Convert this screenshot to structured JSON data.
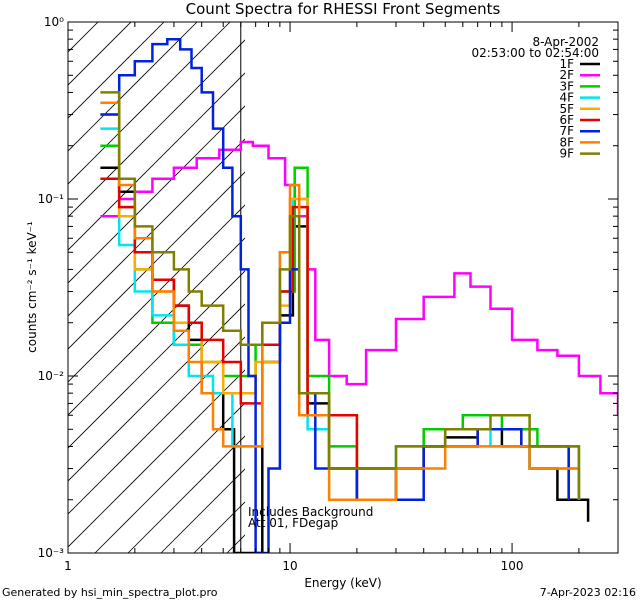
{
  "chart_data": {
    "type": "line",
    "title": "Count Spectra for RHESSI Front Segments",
    "xlabel": "Energy (keV)",
    "ylabel": "counts cm⁻² s⁻¹ keV⁻¹",
    "xscale": "log",
    "yscale": "log",
    "xlim": [
      1,
      300
    ],
    "ylim": [
      0.001,
      1
    ],
    "x_tick_labels": [
      "1",
      "10",
      "100"
    ],
    "y_tick_labels": [
      "10⁻³",
      "10⁻²",
      "10⁻¹",
      "10⁰"
    ],
    "date": "8-Apr-2002",
    "time_range": "02:53:00 to 02:54:00",
    "annotation_lines": [
      "Includes Background",
      "Att 01, FDegap"
    ],
    "footer_left": "Generated by hsi_min_spectra_plot.pro",
    "footer_right": "7-Apr-2023 02:16",
    "hatched_region_xmax_kev": 6,
    "series": [
      {
        "name": "1F",
        "color": "#000000",
        "points": [
          [
            1.4,
            0.15
          ],
          [
            1.7,
            0.11
          ],
          [
            2.0,
            0.05
          ],
          [
            2.4,
            0.035
          ],
          [
            3.0,
            0.025
          ],
          [
            3.5,
            0.016
          ],
          [
            4.0,
            0.008
          ],
          [
            5.0,
            0.005
          ],
          [
            5.6,
            0.001
          ],
          [
            7.5,
            0.012
          ],
          [
            9.0,
            0.022
          ],
          [
            10.3,
            0.07
          ],
          [
            12.0,
            0.007
          ],
          [
            15.0,
            0.003
          ],
          [
            20.0,
            0.002
          ],
          [
            30.0,
            0.003
          ],
          [
            40.0,
            0.004
          ],
          [
            50.0,
            0.0045
          ],
          [
            70.0,
            0.005
          ],
          [
            90.0,
            0.004
          ],
          [
            120.0,
            0.003
          ],
          [
            160.0,
            0.002
          ],
          [
            220.0,
            0.0015
          ]
        ]
      },
      {
        "name": "2F",
        "color": "#ff00ff",
        "points": [
          [
            1.4,
            0.08
          ],
          [
            1.7,
            0.1
          ],
          [
            2.0,
            0.11
          ],
          [
            2.4,
            0.13
          ],
          [
            3.0,
            0.15
          ],
          [
            3.8,
            0.17
          ],
          [
            4.8,
            0.19
          ],
          [
            6.0,
            0.21
          ],
          [
            6.8,
            0.2
          ],
          [
            8.0,
            0.17
          ],
          [
            9.5,
            0.12
          ],
          [
            10.5,
            0.08
          ],
          [
            12.0,
            0.04
          ],
          [
            13.0,
            0.016
          ],
          [
            15.0,
            0.01
          ],
          [
            18.0,
            0.009
          ],
          [
            22.0,
            0.014
          ],
          [
            30.0,
            0.021
          ],
          [
            40.0,
            0.028
          ],
          [
            55.0,
            0.038
          ],
          [
            65.0,
            0.032
          ],
          [
            80.0,
            0.024
          ],
          [
            100.0,
            0.016
          ],
          [
            130.0,
            0.014
          ],
          [
            160.0,
            0.013
          ],
          [
            200.0,
            0.01
          ],
          [
            250.0,
            0.008
          ],
          [
            300.0,
            0.006
          ]
        ]
      },
      {
        "name": "3F",
        "color": "#00cc00",
        "points": [
          [
            1.4,
            0.2
          ],
          [
            1.7,
            0.09
          ],
          [
            2.0,
            0.04
          ],
          [
            2.4,
            0.02
          ],
          [
            3.0,
            0.015
          ],
          [
            4.0,
            0.012
          ],
          [
            5.0,
            0.01
          ],
          [
            7.0,
            0.015
          ],
          [
            9.0,
            0.03
          ],
          [
            10.5,
            0.15
          ],
          [
            12.0,
            0.01
          ],
          [
            15.0,
            0.004
          ],
          [
            20.0,
            0.003
          ],
          [
            40.0,
            0.005
          ],
          [
            60.0,
            0.006
          ],
          [
            90.0,
            0.005
          ],
          [
            130.0,
            0.004
          ],
          [
            200.0,
            0.002
          ]
        ]
      },
      {
        "name": "4F",
        "color": "#00e5ee",
        "points": [
          [
            1.4,
            0.25
          ],
          [
            1.7,
            0.055
          ],
          [
            2.0,
            0.03
          ],
          [
            2.4,
            0.022
          ],
          [
            3.0,
            0.015
          ],
          [
            3.5,
            0.01
          ],
          [
            4.5,
            0.008
          ],
          [
            5.5,
            0.004
          ],
          [
            7.5,
            0.02
          ],
          [
            9.0,
            0.05
          ],
          [
            10.3,
            0.1
          ],
          [
            12.0,
            0.005
          ],
          [
            15.0,
            0.003
          ],
          [
            30.0,
            0.004
          ],
          [
            50.0,
            0.005
          ],
          [
            80.0,
            0.004
          ],
          [
            120.0,
            0.003
          ],
          [
            200.0,
            0.002
          ]
        ]
      },
      {
        "name": "5F",
        "color": "#ffaa00",
        "points": [
          [
            1.4,
            0.3
          ],
          [
            1.7,
            0.08
          ],
          [
            2.0,
            0.04
          ],
          [
            2.4,
            0.03
          ],
          [
            3.0,
            0.02
          ],
          [
            4.0,
            0.012
          ],
          [
            5.0,
            0.008
          ],
          [
            7.0,
            0.012
          ],
          [
            9.0,
            0.025
          ],
          [
            10.0,
            0.1
          ],
          [
            12.0,
            0.006
          ],
          [
            20.0,
            0.003
          ],
          [
            40.0,
            0.004
          ],
          [
            70.0,
            0.005
          ],
          [
            110.0,
            0.004
          ],
          [
            180.0,
            0.002
          ]
        ]
      },
      {
        "name": "6F",
        "color": "#e60000",
        "points": [
          [
            1.4,
            0.13
          ],
          [
            1.7,
            0.09
          ],
          [
            2.0,
            0.05
          ],
          [
            2.4,
            0.035
          ],
          [
            3.0,
            0.025
          ],
          [
            3.5,
            0.02
          ],
          [
            4.0,
            0.016
          ],
          [
            5.0,
            0.012
          ],
          [
            6.0,
            0.007
          ],
          [
            7.5,
            0.015
          ],
          [
            9.0,
            0.03
          ],
          [
            10.3,
            0.09
          ],
          [
            12.0,
            0.006
          ],
          [
            20.0,
            0.003
          ],
          [
            40.0,
            0.004
          ],
          [
            70.0,
            0.005
          ],
          [
            110.0,
            0.004
          ],
          [
            180.0,
            0.002
          ]
        ]
      },
      {
        "name": "7F",
        "color": "#0022dd",
        "points": [
          [
            1.4,
            0.3
          ],
          [
            1.7,
            0.5
          ],
          [
            2.0,
            0.6
          ],
          [
            2.4,
            0.75
          ],
          [
            2.8,
            0.8
          ],
          [
            3.2,
            0.7
          ],
          [
            3.6,
            0.55
          ],
          [
            4.0,
            0.4
          ],
          [
            4.5,
            0.25
          ],
          [
            5.0,
            0.15
          ],
          [
            5.5,
            0.08
          ],
          [
            6.0,
            0.04
          ],
          [
            6.5,
            0.01
          ],
          [
            7.0,
            0.001
          ],
          [
            8.0,
            0.003
          ],
          [
            9.0,
            0.02
          ],
          [
            10.0,
            0.04
          ],
          [
            11.0,
            0.008
          ],
          [
            13.0,
            0.003
          ],
          [
            20.0,
            0.002
          ],
          [
            40.0,
            0.004
          ],
          [
            70.0,
            0.005
          ],
          [
            110.0,
            0.004
          ],
          [
            180.0,
            0.002
          ]
        ]
      },
      {
        "name": "8F",
        "color": "#ff8000",
        "points": [
          [
            1.4,
            0.35
          ],
          [
            1.7,
            0.12
          ],
          [
            2.0,
            0.06
          ],
          [
            2.4,
            0.03
          ],
          [
            3.0,
            0.018
          ],
          [
            3.5,
            0.012
          ],
          [
            4.0,
            0.008
          ],
          [
            4.5,
            0.005
          ],
          [
            5.0,
            0.004
          ],
          [
            6.0,
            0.004
          ],
          [
            7.5,
            0.02
          ],
          [
            9.0,
            0.05
          ],
          [
            10.0,
            0.12
          ],
          [
            11.0,
            0.006
          ],
          [
            15.0,
            0.002
          ],
          [
            30.0,
            0.003
          ],
          [
            50.0,
            0.004
          ],
          [
            80.0,
            0.004
          ],
          [
            120.0,
            0.003
          ],
          [
            200.0,
            0.002
          ]
        ]
      },
      {
        "name": "9F",
        "color": "#808000",
        "points": [
          [
            1.4,
            0.4
          ],
          [
            1.7,
            0.13
          ],
          [
            2.0,
            0.07
          ],
          [
            2.4,
            0.05
          ],
          [
            3.0,
            0.04
          ],
          [
            3.5,
            0.03
          ],
          [
            4.0,
            0.025
          ],
          [
            5.0,
            0.018
          ],
          [
            6.0,
            0.015
          ],
          [
            7.5,
            0.02
          ],
          [
            9.0,
            0.04
          ],
          [
            10.0,
            0.08
          ],
          [
            11.0,
            0.008
          ],
          [
            15.0,
            0.003
          ],
          [
            30.0,
            0.004
          ],
          [
            50.0,
            0.005
          ],
          [
            80.0,
            0.006
          ],
          [
            120.0,
            0.004
          ],
          [
            200.0,
            0.002
          ]
        ]
      }
    ]
  }
}
